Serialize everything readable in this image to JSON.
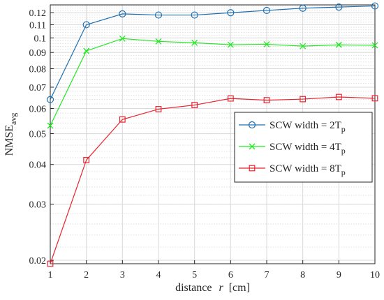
{
  "chart_data": {
    "type": "line",
    "xlabel_prefix": "distance",
    "xlabel_var": "r",
    "xlabel_unit": "[cm]",
    "ylabel_main": "NMSE",
    "ylabel_sub": "avg",
    "yscale": "log",
    "xlim": [
      1,
      10
    ],
    "ylim": [
      0.0195,
      0.127
    ],
    "grid": true,
    "legend_placement": "middle-right",
    "x": [
      1,
      2,
      3,
      4,
      5,
      6,
      7,
      8,
      9,
      10
    ],
    "x_ticks": [
      "1",
      "2",
      "3",
      "4",
      "5",
      "6",
      "7",
      "8",
      "9",
      "10"
    ],
    "y_ticks": [
      {
        "value": 0.02,
        "label": "0.02"
      },
      {
        "value": 0.03,
        "label": "0.03"
      },
      {
        "value": 0.04,
        "label": "0.04"
      },
      {
        "value": 0.05,
        "label": "0.05"
      },
      {
        "value": 0.06,
        "label": "0.06"
      },
      {
        "value": 0.07,
        "label": "0.07"
      },
      {
        "value": 0.08,
        "label": "0.08"
      },
      {
        "value": 0.09,
        "label": "0.09"
      },
      {
        "value": 0.1,
        "label": "0.1"
      },
      {
        "value": 0.11,
        "label": "0.11"
      },
      {
        "value": 0.12,
        "label": "0.12"
      }
    ],
    "series": [
      {
        "name_main": "SCW width = 2T",
        "name_sub": "p",
        "color": "#1f6fb0",
        "marker": "circle",
        "values": [
          0.064,
          0.11,
          0.119,
          0.118,
          0.118,
          0.12,
          0.122,
          0.124,
          0.125,
          0.126
        ]
      },
      {
        "name_main": "SCW width = 4T",
        "name_sub": "p",
        "color": "#22e822",
        "marker": "x",
        "values": [
          0.053,
          0.091,
          0.0995,
          0.0975,
          0.0965,
          0.0952,
          0.0955,
          0.0942,
          0.0951,
          0.0948
        ]
      },
      {
        "name_main": "SCW width = 8T",
        "name_sub": "p",
        "color": "#e8242e",
        "marker": "square",
        "values": [
          0.0195,
          0.0413,
          0.0554,
          0.0597,
          0.0615,
          0.0645,
          0.0637,
          0.0642,
          0.0652,
          0.0646
        ]
      }
    ]
  }
}
